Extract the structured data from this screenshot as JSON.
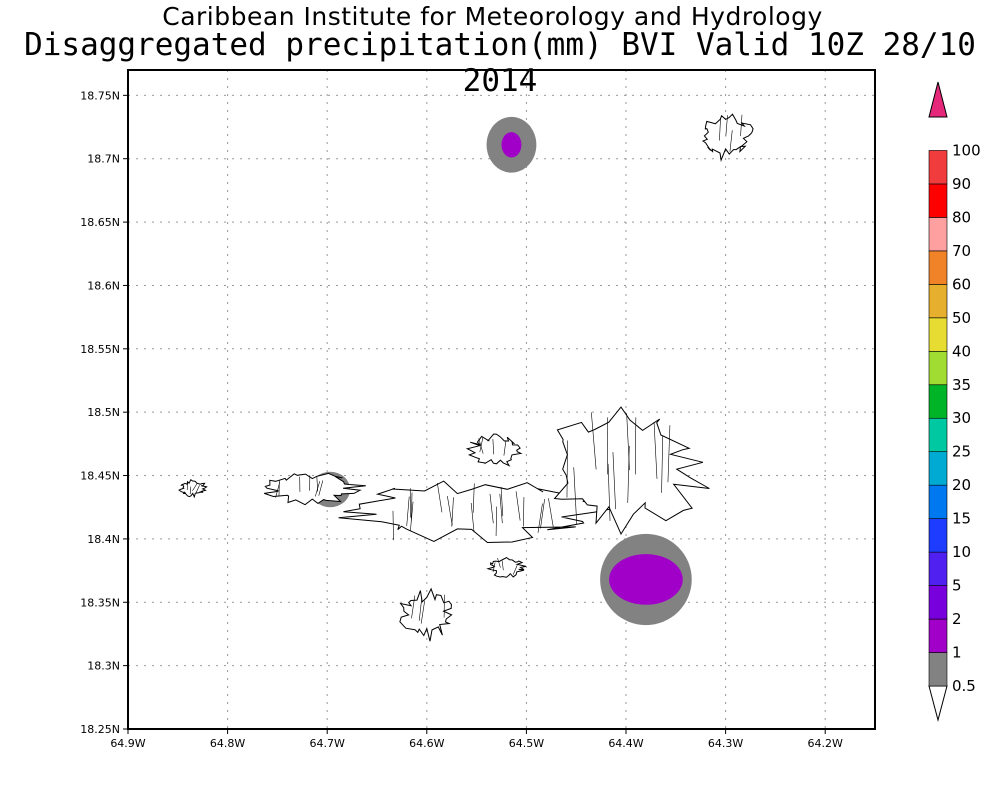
{
  "title": {
    "line1": "Caribbean Institute for Meteorology and Hydrology",
    "line2": "Disaggregated precipitation(mm) BVI Valid 10Z 28/10 2014"
  },
  "map": {
    "lon_range": [
      -64.9,
      -64.15
    ],
    "lat_range": [
      18.25,
      18.77
    ],
    "x_tick_labels": [
      "64.9W",
      "64.8W",
      "64.7W",
      "64.6W",
      "64.5W",
      "64.4W",
      "64.3W",
      "64.2W"
    ],
    "y_tick_labels": [
      "18.25N",
      "18.3N",
      "18.35N",
      "18.4N",
      "18.45N",
      "18.5N",
      "18.55N",
      "18.6N",
      "18.65N",
      "18.7N",
      "18.75N"
    ],
    "grid": true
  },
  "colorbar": {
    "labels": [
      "0.5",
      "1",
      "2",
      "5",
      "10",
      "15",
      "20",
      "25",
      "30",
      "35",
      "40",
      "50",
      "60",
      "70",
      "80",
      "90",
      "100"
    ],
    "colors": [
      "#ffffff",
      "#828282",
      "#a000c8",
      "#7800dc",
      "#5020f0",
      "#1e3cff",
      "#0078f0",
      "#00aad2",
      "#00c8a0",
      "#00b428",
      "#a0dc32",
      "#e6dc32",
      "#e6af2d",
      "#f08228",
      "#ffa0a0",
      "#ff0000",
      "#f03c3c",
      "#e6287a"
    ]
  },
  "chart_data": {
    "type": "heatmap",
    "title": "Disaggregated precipitation(mm) BVI Valid 10Z 28/10 2014",
    "xlabel": "",
    "ylabel": "",
    "xlim": [
      -64.9,
      -64.15
    ],
    "ylim": [
      18.25,
      18.77
    ],
    "precip_areas": [
      {
        "lon": -64.515,
        "lat": 18.711,
        "category": "1-2",
        "color": "#a000c8",
        "lon_radius": 0.01,
        "lat_radius": 0.01
      },
      {
        "lon": -64.515,
        "lat": 18.711,
        "category": "0.5-1",
        "color": "#828282",
        "lon_radius": 0.025,
        "lat_radius": 0.022
      },
      {
        "lon": -64.38,
        "lat": 18.368,
        "category": "1-2",
        "color": "#a000c8",
        "lon_radius": 0.037,
        "lat_radius": 0.02
      },
      {
        "lon": -64.38,
        "lat": 18.368,
        "category": "0.5-1",
        "color": "#828282",
        "lon_radius": 0.046,
        "lat_radius": 0.036
      },
      {
        "lon": -64.697,
        "lat": 18.439,
        "category": "0.5-1",
        "color": "#828282",
        "lon_radius": 0.02,
        "lat_radius": 0.014
      }
    ],
    "islands": [
      {
        "lon_range": [
          -64.33,
          -64.27
        ],
        "lat_range": [
          18.69,
          18.746
        ]
      },
      {
        "lon_range": [
          -64.71,
          -64.4
        ],
        "lat_range": [
          18.383,
          18.46
        ]
      },
      {
        "lon_range": [
          -64.77,
          -64.66
        ],
        "lat_range": [
          18.42,
          18.46
        ]
      },
      {
        "lon_range": [
          -64.5,
          -64.31
        ],
        "lat_range": [
          18.38,
          18.53
        ]
      },
      {
        "lon_range": [
          -64.63,
          -64.57
        ],
        "lat_range": [
          18.31,
          18.37
        ]
      },
      {
        "lon_range": [
          -64.56,
          -64.5
        ],
        "lat_range": [
          18.45,
          18.49
        ]
      },
      {
        "lon_range": [
          -64.54,
          -64.5
        ],
        "lat_range": [
          18.365,
          18.39
        ]
      },
      {
        "lon_range": [
          -64.85,
          -64.82
        ],
        "lat_range": [
          18.43,
          18.45
        ]
      }
    ]
  }
}
